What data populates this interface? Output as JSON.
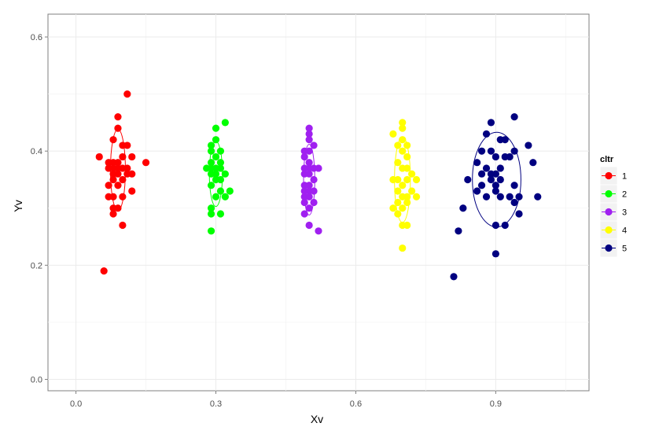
{
  "chart_data": {
    "type": "scatter",
    "title": "",
    "xlabel": "Xv",
    "ylabel": "Yv",
    "xlim": [
      -0.06,
      1.1
    ],
    "ylim": [
      -0.02,
      0.64
    ],
    "x_ticks": [
      0.0,
      0.3,
      0.6,
      0.9
    ],
    "x_tick_labels": [
      "0.0",
      "0.3",
      "0.6",
      "0.9"
    ],
    "y_ticks": [
      0.0,
      0.2,
      0.4,
      0.6
    ],
    "y_tick_labels": [
      "0.0",
      "0.2",
      "0.4",
      "0.6"
    ],
    "grid": true,
    "legend": {
      "title": "cltr",
      "position": "right"
    },
    "series": [
      {
        "name": "1",
        "color": "#ff0000",
        "points": [
          [
            0.06,
            0.19
          ],
          [
            0.11,
            0.5
          ],
          [
            0.09,
            0.46
          ],
          [
            0.09,
            0.44
          ],
          [
            0.08,
            0.42
          ],
          [
            0.1,
            0.41
          ],
          [
            0.11,
            0.41
          ],
          [
            0.05,
            0.39
          ],
          [
            0.1,
            0.39
          ],
          [
            0.12,
            0.39
          ],
          [
            0.07,
            0.38
          ],
          [
            0.08,
            0.38
          ],
          [
            0.09,
            0.38
          ],
          [
            0.15,
            0.38
          ],
          [
            0.07,
            0.37
          ],
          [
            0.08,
            0.37
          ],
          [
            0.09,
            0.37
          ],
          [
            0.1,
            0.37
          ],
          [
            0.11,
            0.37
          ],
          [
            0.08,
            0.36
          ],
          [
            0.09,
            0.36
          ],
          [
            0.11,
            0.36
          ],
          [
            0.12,
            0.36
          ],
          [
            0.08,
            0.35
          ],
          [
            0.1,
            0.35
          ],
          [
            0.07,
            0.34
          ],
          [
            0.09,
            0.34
          ],
          [
            0.12,
            0.33
          ],
          [
            0.07,
            0.32
          ],
          [
            0.08,
            0.32
          ],
          [
            0.1,
            0.32
          ],
          [
            0.08,
            0.3
          ],
          [
            0.09,
            0.3
          ],
          [
            0.08,
            0.29
          ],
          [
            0.1,
            0.27
          ]
        ],
        "ellipse": {
          "center": [
            0.09,
            0.367
          ],
          "rx": 0.016,
          "ry": 0.071
        }
      },
      {
        "name": "2",
        "color": "#00ff00",
        "points": [
          [
            0.32,
            0.45
          ],
          [
            0.3,
            0.44
          ],
          [
            0.3,
            0.42
          ],
          [
            0.29,
            0.41
          ],
          [
            0.31,
            0.4
          ],
          [
            0.29,
            0.4
          ],
          [
            0.3,
            0.39
          ],
          [
            0.29,
            0.38
          ],
          [
            0.31,
            0.38
          ],
          [
            0.28,
            0.37
          ],
          [
            0.29,
            0.37
          ],
          [
            0.3,
            0.37
          ],
          [
            0.31,
            0.37
          ],
          [
            0.29,
            0.36
          ],
          [
            0.3,
            0.36
          ],
          [
            0.32,
            0.36
          ],
          [
            0.3,
            0.35
          ],
          [
            0.31,
            0.35
          ],
          [
            0.29,
            0.34
          ],
          [
            0.31,
            0.33
          ],
          [
            0.33,
            0.33
          ],
          [
            0.3,
            0.32
          ],
          [
            0.32,
            0.32
          ],
          [
            0.29,
            0.3
          ],
          [
            0.29,
            0.29
          ],
          [
            0.31,
            0.29
          ],
          [
            0.29,
            0.26
          ]
        ],
        "ellipse": {
          "center": [
            0.3,
            0.36
          ],
          "rx": 0.014,
          "ry": 0.057
        }
      },
      {
        "name": "3",
        "color": "#a020f0",
        "points": [
          [
            0.5,
            0.44
          ],
          [
            0.5,
            0.43
          ],
          [
            0.5,
            0.42
          ],
          [
            0.51,
            0.41
          ],
          [
            0.49,
            0.4
          ],
          [
            0.5,
            0.4
          ],
          [
            0.49,
            0.39
          ],
          [
            0.5,
            0.38
          ],
          [
            0.49,
            0.37
          ],
          [
            0.5,
            0.37
          ],
          [
            0.51,
            0.37
          ],
          [
            0.52,
            0.37
          ],
          [
            0.49,
            0.36
          ],
          [
            0.5,
            0.36
          ],
          [
            0.51,
            0.35
          ],
          [
            0.49,
            0.34
          ],
          [
            0.5,
            0.34
          ],
          [
            0.49,
            0.33
          ],
          [
            0.5,
            0.33
          ],
          [
            0.51,
            0.33
          ],
          [
            0.49,
            0.32
          ],
          [
            0.5,
            0.32
          ],
          [
            0.51,
            0.31
          ],
          [
            0.49,
            0.31
          ],
          [
            0.5,
            0.3
          ],
          [
            0.49,
            0.29
          ],
          [
            0.5,
            0.27
          ],
          [
            0.52,
            0.26
          ]
        ],
        "ellipse": {
          "center": [
            0.5,
            0.35
          ],
          "rx": 0.012,
          "ry": 0.062
        }
      },
      {
        "name": "4",
        "color": "#ffff00",
        "points": [
          [
            0.7,
            0.45
          ],
          [
            0.7,
            0.44
          ],
          [
            0.68,
            0.43
          ],
          [
            0.7,
            0.42
          ],
          [
            0.69,
            0.41
          ],
          [
            0.71,
            0.41
          ],
          [
            0.7,
            0.4
          ],
          [
            0.71,
            0.39
          ],
          [
            0.69,
            0.38
          ],
          [
            0.7,
            0.37
          ],
          [
            0.71,
            0.37
          ],
          [
            0.72,
            0.36
          ],
          [
            0.69,
            0.35
          ],
          [
            0.71,
            0.35
          ],
          [
            0.73,
            0.35
          ],
          [
            0.68,
            0.35
          ],
          [
            0.7,
            0.34
          ],
          [
            0.72,
            0.33
          ],
          [
            0.69,
            0.33
          ],
          [
            0.7,
            0.32
          ],
          [
            0.71,
            0.32
          ],
          [
            0.69,
            0.31
          ],
          [
            0.73,
            0.32
          ],
          [
            0.71,
            0.31
          ],
          [
            0.68,
            0.3
          ],
          [
            0.7,
            0.3
          ],
          [
            0.69,
            0.29
          ],
          [
            0.7,
            0.27
          ],
          [
            0.71,
            0.27
          ],
          [
            0.7,
            0.23
          ]
        ],
        "ellipse": {
          "center": [
            0.7,
            0.35
          ],
          "rx": 0.017,
          "ry": 0.075
        }
      },
      {
        "name": "5",
        "color": "#000080",
        "points": [
          [
            0.94,
            0.46
          ],
          [
            0.89,
            0.45
          ],
          [
            0.88,
            0.43
          ],
          [
            0.91,
            0.42
          ],
          [
            0.92,
            0.42
          ],
          [
            0.97,
            0.41
          ],
          [
            0.87,
            0.4
          ],
          [
            0.89,
            0.4
          ],
          [
            0.94,
            0.4
          ],
          [
            0.9,
            0.39
          ],
          [
            0.92,
            0.39
          ],
          [
            0.93,
            0.39
          ],
          [
            0.98,
            0.38
          ],
          [
            0.86,
            0.38
          ],
          [
            0.88,
            0.37
          ],
          [
            0.91,
            0.37
          ],
          [
            0.87,
            0.36
          ],
          [
            0.89,
            0.36
          ],
          [
            0.9,
            0.36
          ],
          [
            0.89,
            0.35
          ],
          [
            0.91,
            0.35
          ],
          [
            0.84,
            0.35
          ],
          [
            0.87,
            0.34
          ],
          [
            0.9,
            0.34
          ],
          [
            0.94,
            0.34
          ],
          [
            0.86,
            0.33
          ],
          [
            0.9,
            0.33
          ],
          [
            0.88,
            0.32
          ],
          [
            0.91,
            0.32
          ],
          [
            0.93,
            0.32
          ],
          [
            0.95,
            0.32
          ],
          [
            0.99,
            0.32
          ],
          [
            0.94,
            0.31
          ],
          [
            0.83,
            0.3
          ],
          [
            0.95,
            0.29
          ],
          [
            0.9,
            0.27
          ],
          [
            0.92,
            0.27
          ],
          [
            0.82,
            0.26
          ],
          [
            0.9,
            0.22
          ],
          [
            0.81,
            0.18
          ]
        ],
        "ellipse": {
          "center": [
            0.902,
            0.35
          ],
          "rx": 0.052,
          "ry": 0.083
        }
      }
    ]
  }
}
